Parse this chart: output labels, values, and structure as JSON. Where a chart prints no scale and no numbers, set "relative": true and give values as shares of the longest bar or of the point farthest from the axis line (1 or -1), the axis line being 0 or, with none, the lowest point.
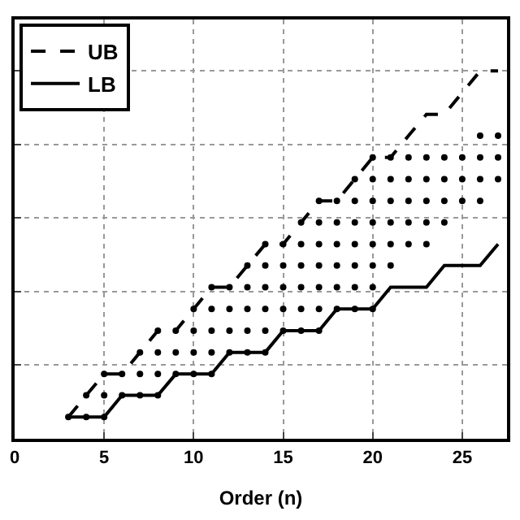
{
  "chart_data": {
    "type": "line",
    "relative": true,
    "xlabel": "Order (n)",
    "xlim": [
      0,
      27.5
    ],
    "xticks": [
      0,
      5,
      10,
      15,
      20,
      25
    ],
    "tick_labels": "x",
    "grid": true,
    "legend": "top left",
    "series": [
      {
        "name": "UB",
        "color": "#000000",
        "line_style": "dashed",
        "marker": "none",
        "x": [
          3,
          4,
          5,
          6,
          7,
          8,
          9,
          10,
          11,
          12,
          13,
          14,
          15,
          16,
          17,
          18,
          19,
          20,
          21,
          22,
          23,
          24,
          25,
          26,
          27
        ],
        "values": [
          0.059,
          0.118,
          0.176,
          0.176,
          0.235,
          0.294,
          0.294,
          0.353,
          0.412,
          0.412,
          0.471,
          0.529,
          0.529,
          0.588,
          0.647,
          0.647,
          0.706,
          0.765,
          0.765,
          0.824,
          0.882,
          0.882,
          0.941,
          1,
          1
        ]
      },
      {
        "name": "LB",
        "color": "#000000",
        "line_style": "solid",
        "marker": "none",
        "x": [
          3,
          4,
          5,
          6,
          7,
          8,
          9,
          10,
          11,
          12,
          13,
          14,
          15,
          16,
          17,
          18,
          19,
          20,
          21,
          22,
          23,
          24,
          25,
          26,
          27
        ],
        "values": [
          0.059,
          0.059,
          0.059,
          0.118,
          0.118,
          0.118,
          0.176,
          0.176,
          0.176,
          0.235,
          0.235,
          0.235,
          0.294,
          0.294,
          0.294,
          0.353,
          0.353,
          0.353,
          0.412,
          0.412,
          0.412,
          0.471,
          0.471,
          0.471,
          0.529
        ]
      },
      {
        "color": "#000000",
        "type": "scatter",
        "marker": "circle",
        "x": [
          3,
          4,
          5,
          4,
          5,
          6,
          7,
          8,
          5,
          6,
          7,
          8,
          9,
          10,
          11,
          7,
          8,
          9,
          10,
          11,
          12,
          13,
          14,
          8,
          9,
          10,
          11,
          12,
          13,
          14,
          15,
          16,
          17,
          10,
          11,
          12,
          13,
          14,
          15,
          16,
          17,
          18,
          19,
          20,
          11,
          12,
          13,
          14,
          15,
          16,
          17,
          18,
          19,
          20,
          13,
          14,
          15,
          16,
          17,
          18,
          19,
          20,
          21,
          14,
          15,
          16,
          17,
          18,
          19,
          20,
          21,
          22,
          23,
          16,
          17,
          18,
          19,
          20,
          21,
          22,
          23,
          24,
          17,
          18,
          19,
          20,
          21,
          22,
          23,
          24,
          25,
          26,
          19,
          20,
          21,
          22,
          23,
          24,
          25,
          26,
          27,
          20,
          21,
          22,
          23,
          24,
          25,
          26,
          27,
          26,
          27
        ],
        "values": [
          0.059,
          0.059,
          0.059,
          0.118,
          0.118,
          0.118,
          0.118,
          0.118,
          0.176,
          0.176,
          0.176,
          0.176,
          0.176,
          0.176,
          0.176,
          0.235,
          0.235,
          0.235,
          0.235,
          0.235,
          0.235,
          0.235,
          0.235,
          0.294,
          0.294,
          0.294,
          0.294,
          0.294,
          0.294,
          0.294,
          0.294,
          0.294,
          0.294,
          0.353,
          0.353,
          0.353,
          0.353,
          0.353,
          0.353,
          0.353,
          0.353,
          0.353,
          0.353,
          0.353,
          0.412,
          0.412,
          0.412,
          0.412,
          0.412,
          0.412,
          0.412,
          0.412,
          0.412,
          0.412,
          0.471,
          0.471,
          0.471,
          0.471,
          0.471,
          0.471,
          0.471,
          0.471,
          0.471,
          0.529,
          0.529,
          0.529,
          0.529,
          0.529,
          0.529,
          0.529,
          0.529,
          0.529,
          0.529,
          0.588,
          0.588,
          0.588,
          0.588,
          0.588,
          0.588,
          0.588,
          0.588,
          0.588,
          0.647,
          0.647,
          0.647,
          0.647,
          0.647,
          0.647,
          0.647,
          0.647,
          0.647,
          0.647,
          0.706,
          0.706,
          0.706,
          0.706,
          0.706,
          0.706,
          0.706,
          0.706,
          0.706,
          0.765,
          0.765,
          0.765,
          0.765,
          0.765,
          0.765,
          0.765,
          0.765,
          0.824,
          0.824
        ]
      }
    ]
  }
}
